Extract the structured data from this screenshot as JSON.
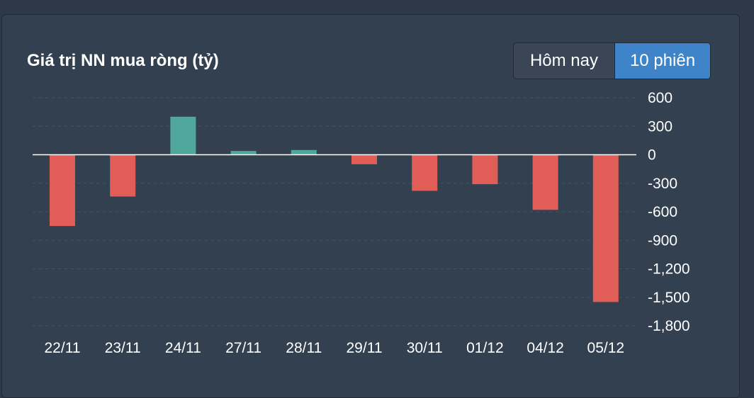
{
  "widget": {
    "title": "Giá trị NN mua ròng (tỷ)",
    "buttons": {
      "today": "Hôm nay",
      "ten_sessions": "10 phiên"
    },
    "active_button": "ten_sessions"
  },
  "colors": {
    "positive": "#4fa89b",
    "negative": "#e05e57",
    "active_button": "#3f84c8",
    "background": "#334050"
  },
  "chart_data": {
    "type": "bar",
    "title": "Giá trị NN mua ròng (tỷ)",
    "categories": [
      "22/11",
      "23/11",
      "24/11",
      "27/11",
      "28/11",
      "29/11",
      "30/11",
      "01/12",
      "04/12",
      "05/12"
    ],
    "values": [
      -750,
      -440,
      400,
      40,
      50,
      -100,
      -380,
      -310,
      -580,
      -1550
    ],
    "ylim": [
      -1800,
      600
    ],
    "yticks": [
      600,
      300,
      0,
      -300,
      -600,
      -900,
      -1200,
      -1500,
      -1800
    ],
    "ytick_labels": [
      "600",
      "300",
      "0",
      "-300",
      "-600",
      "-900",
      "-1,200",
      "-1,500",
      "-1,800"
    ],
    "y_axis_position": "right",
    "grid": true
  }
}
